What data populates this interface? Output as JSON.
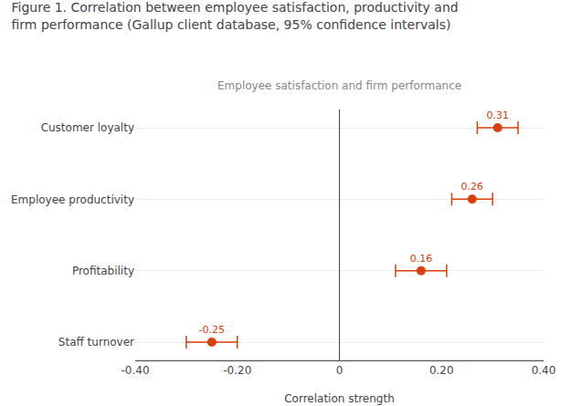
{
  "chart_data": {
    "type": "dot",
    "title": "Figure 1. Correlation between employee satisfaction, productivity and\nfirm performance (Gallup client database, 95% confidence intervals)",
    "subtitle": "Employee satisfaction and firm performance",
    "xlabel": "Correlation strength",
    "categories": [
      "Customer loyalty",
      "Employee productivity",
      "Profitability",
      "Staff turnover"
    ],
    "values": [
      0.31,
      0.26,
      0.16,
      -0.25
    ],
    "ci_low": [
      0.27,
      0.22,
      0.11,
      -0.3
    ],
    "ci_high": [
      0.35,
      0.3,
      0.21,
      -0.2
    ],
    "color": "#d9400a",
    "orientation": "horizontal",
    "xlim": [
      -0.4,
      0.4
    ],
    "xticks": [
      {
        "value": -0.4,
        "label": "-0.40"
      },
      {
        "value": -0.2,
        "label": "-0.20"
      },
      0,
      {
        "value": 0.2,
        "label": "0.20"
      },
      {
        "value": 0.4,
        "label": "0.40"
      }
    ],
    "grid": true,
    "data_labels": true
  }
}
